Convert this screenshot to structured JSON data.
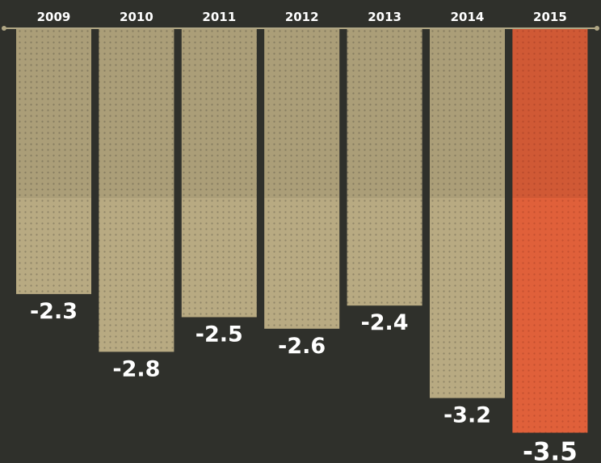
{
  "chart_data": {
    "type": "bar",
    "orientation": "downward",
    "categories": [
      "2009",
      "2010",
      "2011",
      "2012",
      "2013",
      "2014",
      "2015"
    ],
    "values": [
      -2.3,
      -2.8,
      -2.5,
      -2.6,
      -2.4,
      -3.2,
      -3.5
    ],
    "value_labels": [
      "-2.3",
      "-2.8",
      "-2.5",
      "-2.6",
      "-2.4",
      "-3.2",
      "-3.5"
    ],
    "highlight_index": 6,
    "title": "",
    "xlabel": "",
    "ylabel": "",
    "ylim": [
      -3.5,
      0
    ],
    "grid": false,
    "legend": "none",
    "colors": {
      "background": "#2f302b",
      "bar": "#b8aa82",
      "bar_dots": "#8e8466",
      "highlight": "#e0603a",
      "highlight_dots": "#c44f2f",
      "baseline": "#b0a684",
      "text": "#ffffff"
    }
  }
}
